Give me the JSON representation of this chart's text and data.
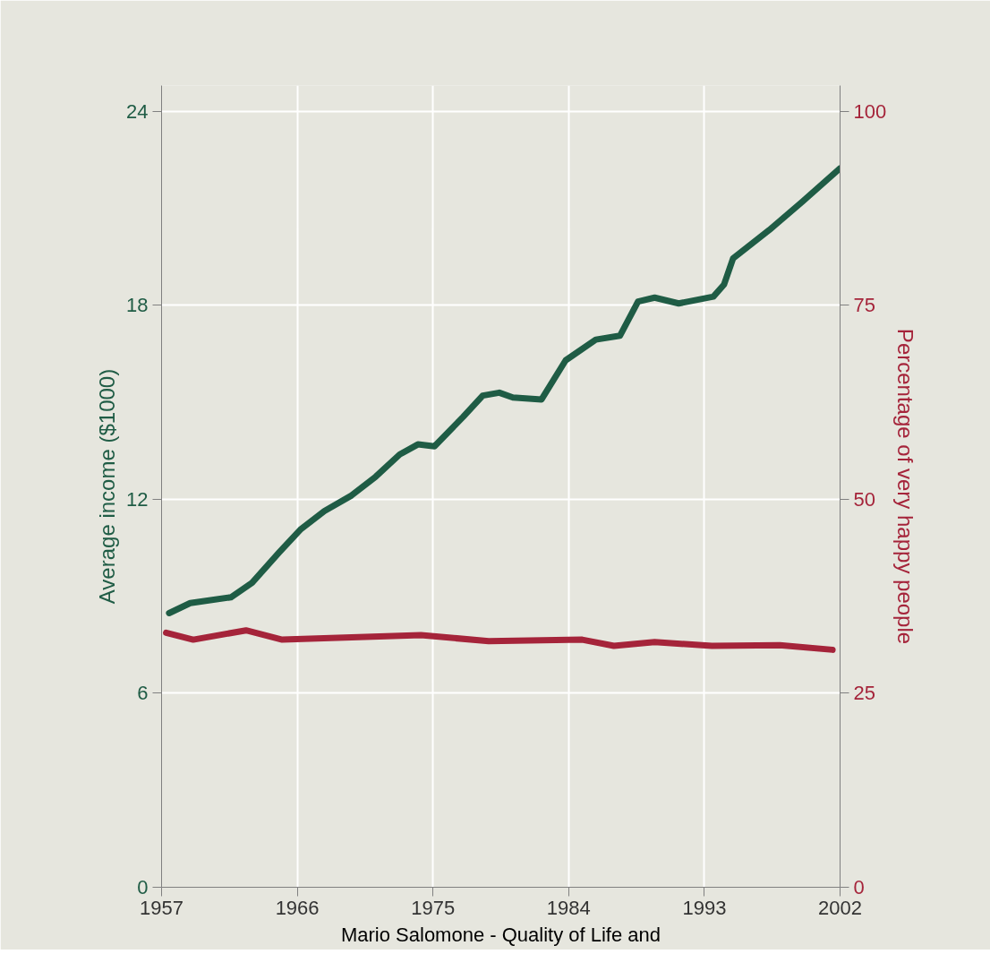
{
  "chart_data": {
    "type": "line",
    "ylabel": "Average income ($1000)",
    "y2label": "Percentage of very happy people",
    "xlim": [
      1957,
      2002
    ],
    "xticks": [
      1957,
      1966,
      1975,
      1984,
      1993,
      2002
    ],
    "ylim": [
      0,
      24.8
    ],
    "yticks": [
      0,
      6,
      12,
      18,
      24
    ],
    "y2lim": [
      0,
      103.3
    ],
    "y2ticks": [
      0,
      25,
      50,
      75,
      100
    ],
    "grid": true,
    "line_style": "solid",
    "marker": "none",
    "series": [
      {
        "color": "#1f5c45",
        "x": [
          1957.5,
          1958.9,
          1961.6,
          1963.0,
          1964.8,
          1966.2,
          1967.8,
          1969.6,
          1971.2,
          1972.8,
          1974.0,
          1975.1,
          1977.0,
          1978.3,
          1979.4,
          1980.3,
          1982.2,
          1983.8,
          1985.8,
          1987.4,
          1988.6,
          1989.7,
          1991.3,
          1993.6,
          1994.3,
          1994.9,
          1997.3,
          1999.5,
          2002.0
        ],
        "values": [
          8.48,
          8.79,
          8.97,
          9.42,
          10.36,
          11.06,
          11.64,
          12.12,
          12.7,
          13.39,
          13.7,
          13.64,
          14.55,
          15.21,
          15.3,
          15.15,
          15.09,
          16.3,
          16.94,
          17.06,
          18.12,
          18.24,
          18.06,
          18.27,
          18.64,
          19.45,
          20.33,
          21.21,
          22.24
        ]
      },
      {
        "color": "#a5243a",
        "axis": "y2",
        "x": [
          1957.3,
          1959.1,
          1962.6,
          1965.0,
          1974.2,
          1978.7,
          1984.9,
          1987.0,
          1989.7,
          1993.5,
          1998.0,
          2001.5
        ],
        "values": [
          32.8,
          31.9,
          33.1,
          31.9,
          32.5,
          31.7,
          31.9,
          31.1,
          31.6,
          31.1,
          31.2,
          30.6
        ]
      }
    ],
    "annotations": [
      "Mario Salomone - Quality of Life and"
    ]
  }
}
